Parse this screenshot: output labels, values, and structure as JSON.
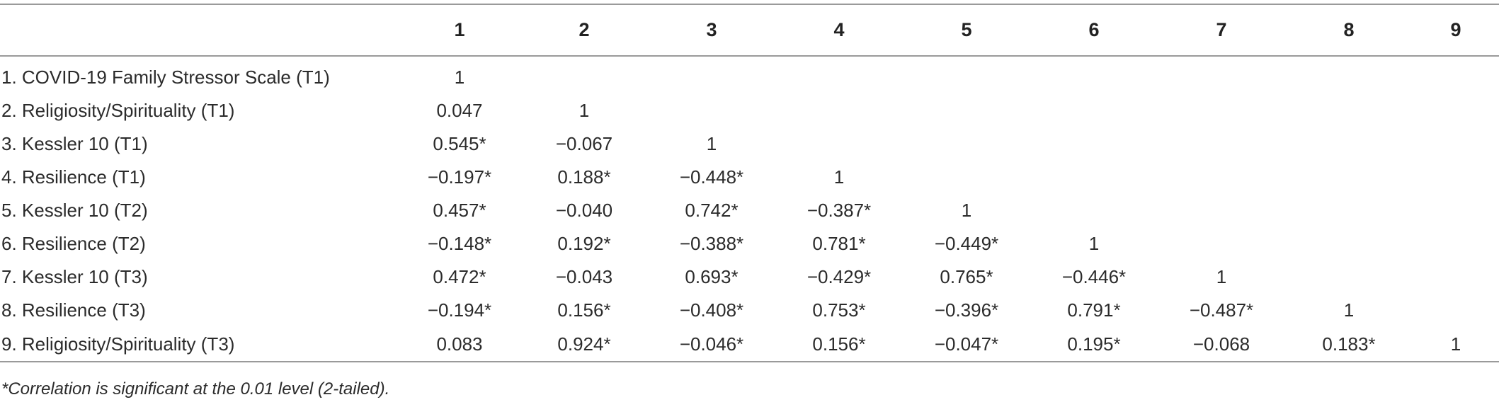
{
  "table": {
    "columns": [
      "1",
      "2",
      "3",
      "4",
      "5",
      "6",
      "7",
      "8",
      "9"
    ],
    "rows": [
      {
        "label": "1. COVID-19 Family Stressor Scale (T1)",
        "values": [
          "1",
          "",
          "",
          "",
          "",
          "",
          "",
          "",
          ""
        ]
      },
      {
        "label": "2. Religiosity/Spirituality (T1)",
        "values": [
          "0.047",
          "1",
          "",
          "",
          "",
          "",
          "",
          "",
          ""
        ]
      },
      {
        "label": "3. Kessler 10 (T1)",
        "values": [
          "0.545*",
          "−0.067",
          "1",
          "",
          "",
          "",
          "",
          "",
          ""
        ]
      },
      {
        "label": "4. Resilience (T1)",
        "values": [
          "−0.197*",
          "0.188*",
          "−0.448*",
          "1",
          "",
          "",
          "",
          "",
          ""
        ]
      },
      {
        "label": "5. Kessler 10 (T2)",
        "values": [
          "0.457*",
          "−0.040",
          "0.742*",
          "−0.387*",
          "1",
          "",
          "",
          "",
          ""
        ]
      },
      {
        "label": "6. Resilience (T2)",
        "values": [
          "−0.148*",
          "0.192*",
          "−0.388*",
          "0.781*",
          "−0.449*",
          "1",
          "",
          "",
          ""
        ]
      },
      {
        "label": "7. Kessler 10 (T3)",
        "values": [
          "0.472*",
          "−0.043",
          "0.693*",
          "−0.429*",
          "0.765*",
          "−0.446*",
          "1",
          "",
          ""
        ]
      },
      {
        "label": "8. Resilience (T3)",
        "values": [
          "−0.194*",
          "0.156*",
          "−0.408*",
          "0.753*",
          "−0.396*",
          "0.791*",
          "−0.487*",
          "1",
          ""
        ]
      },
      {
        "label": "9. Religiosity/Spirituality (T3)",
        "values": [
          "0.083",
          "0.924*",
          "−0.046*",
          "0.156*",
          "−0.047*",
          "0.195*",
          "−0.068",
          "0.183*",
          "1"
        ]
      }
    ],
    "footnote": "*Correlation is significant at the 0.01 level (2-tailed)."
  }
}
